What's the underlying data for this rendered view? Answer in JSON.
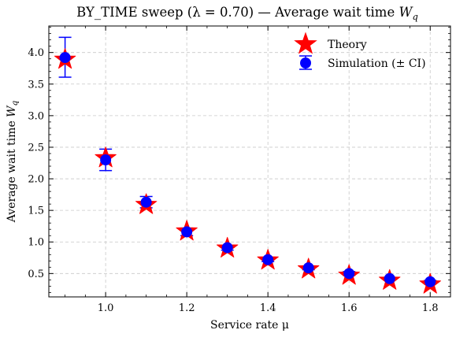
{
  "chart_data": {
    "type": "scatter",
    "title": "BY_TIME sweep (λ = 0.70) — Average wait time W_q",
    "title_parts": {
      "main": "BY_TIME sweep (λ = 0.70) — Average wait time ",
      "symbol": "W",
      "subscript": "q"
    },
    "xlabel": "Service rate μ",
    "ylabel": "Average wait time W_q",
    "ylabel_parts": {
      "main": "Average wait time ",
      "symbol": "W",
      "subscript": "q"
    },
    "xlim": [
      0.86,
      1.85
    ],
    "ylim": [
      0.13,
      4.42
    ],
    "xticks": [
      1.0,
      1.2,
      1.4,
      1.6,
      1.8
    ],
    "xtick_labels": [
      "1.0",
      "1.2",
      "1.4",
      "1.6",
      "1.8"
    ],
    "yticks": [
      0.5,
      1.0,
      1.5,
      2.0,
      2.5,
      3.0,
      3.5,
      4.0
    ],
    "ytick_labels": [
      "0.5",
      "1.0",
      "1.5",
      "2.0",
      "2.5",
      "3.0",
      "3.5",
      "4.0"
    ],
    "grid": true,
    "legend_position": "top-right",
    "x": [
      0.9,
      1.0,
      1.1,
      1.2,
      1.3,
      1.4,
      1.5,
      1.6,
      1.7,
      1.8
    ],
    "series": [
      {
        "name": "Theory",
        "marker": "star",
        "color": "#ff0000",
        "values": [
          3.89,
          2.33,
          1.59,
          1.17,
          0.9,
          0.71,
          0.57,
          0.47,
          0.39,
          0.33
        ]
      },
      {
        "name": "Simulation (± CI)",
        "marker": "circle",
        "color": "#0000ff",
        "values": [
          3.92,
          2.3,
          1.63,
          1.16,
          0.91,
          0.72,
          0.59,
          0.5,
          0.42,
          0.37
        ],
        "ci_low": [
          3.61,
          2.13,
          1.54,
          1.1,
          0.87,
          0.69,
          0.56,
          0.47,
          0.4,
          0.35
        ],
        "ci_high": [
          4.24,
          2.47,
          1.72,
          1.22,
          0.95,
          0.75,
          0.62,
          0.53,
          0.44,
          0.39
        ]
      }
    ]
  }
}
